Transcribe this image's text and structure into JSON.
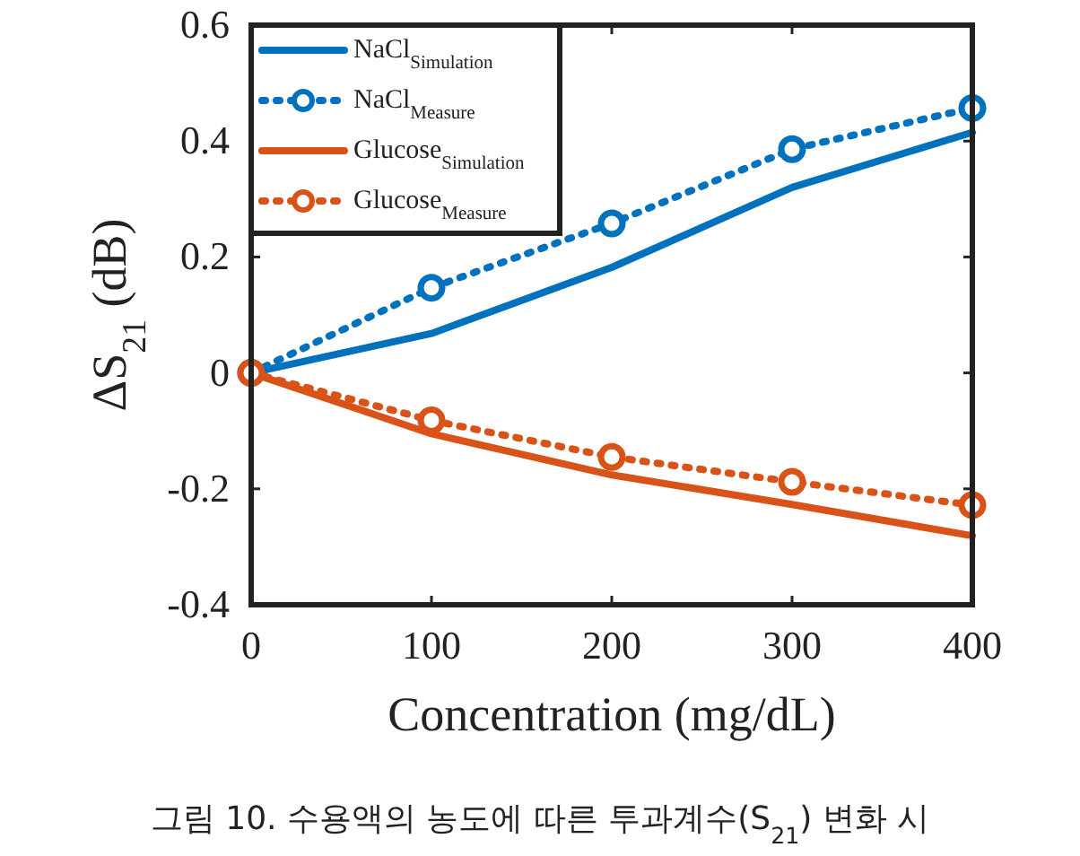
{
  "chart_data": {
    "type": "line",
    "xlabel": "Concentration (mg/dL)",
    "ylabel": "ΔS$_{21}$ (dB)",
    "x": [
      0,
      100,
      200,
      300,
      400
    ],
    "series": [
      {
        "name": "NaCl$_{Simulation}$",
        "color": "#0072bd",
        "values": [
          0,
          0.068,
          0.182,
          0.32,
          0.415
        ],
        "marker": "none",
        "line_style": "solid"
      },
      {
        "name": "NaCl$_{Measure}$",
        "color": "#0072bd",
        "values": [
          0,
          0.147,
          0.258,
          0.386,
          0.457
        ],
        "marker": "circle",
        "line_style": "dotted"
      },
      {
        "name": "Glucose$_{Simulation}$",
        "color": "#d95319",
        "values": [
          0,
          -0.105,
          -0.176,
          -0.227,
          -0.281
        ],
        "marker": "none",
        "line_style": "solid"
      },
      {
        "name": "Glucose$_{Measure}$",
        "color": "#d95319",
        "values": [
          0,
          -0.082,
          -0.145,
          -0.188,
          -0.228
        ],
        "marker": "circle",
        "line_style": "dotted"
      }
    ],
    "xlim": [
      0,
      400
    ],
    "ylim": [
      -0.4,
      0.6
    ],
    "xticks": [
      0,
      100,
      200,
      300,
      400
    ],
    "yticks": [
      -0.4,
      -0.2,
      0,
      0.2,
      0.4,
      0.6
    ],
    "legend": "top left",
    "grid": false,
    "annotations": [
      "그림 10. 수용액의 농도에 따른 투과계수(S$_{21}$) 변화 시"
    ]
  }
}
